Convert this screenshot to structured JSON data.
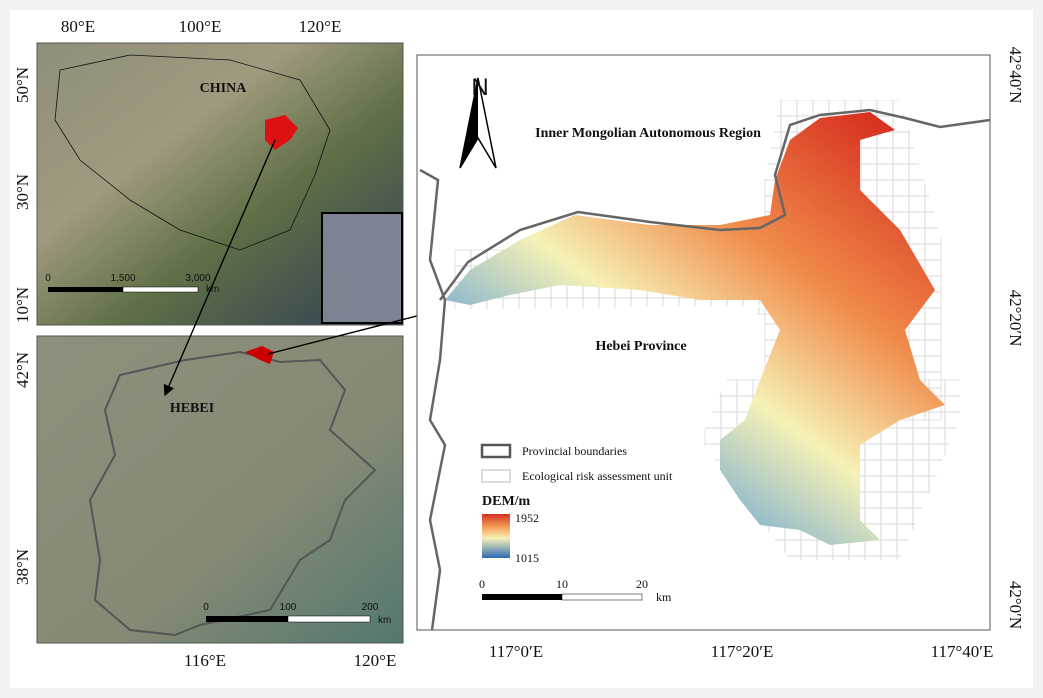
{
  "overview_map": {
    "lon_labels": [
      "80°E",
      "100°E",
      "120°E"
    ],
    "lat_labels": [
      "50°N",
      "30°N",
      "10°N"
    ],
    "label": "CHINA",
    "scale": [
      "0",
      "1,500",
      "3,000"
    ],
    "scale_unit": "km"
  },
  "hebei_map": {
    "lat_labels": [
      "42°N",
      "38°N"
    ],
    "lon_labels": [
      "116°E",
      "120°E"
    ],
    "label": "HEBEI",
    "scale": [
      "0",
      "100",
      "200"
    ],
    "scale_unit": "km"
  },
  "study_map": {
    "lat_labels": [
      "42°40′N",
      "42°20′N",
      "42°0′N"
    ],
    "lon_labels": [
      "117°0′E",
      "117°20′E",
      "117°40′E"
    ],
    "north": "N",
    "regions": [
      "Inner Mongolian Autonomous Region",
      "Hebei Province"
    ],
    "legend": {
      "items": [
        "Provincial boundaries",
        "Ecological risk assessment unit"
      ],
      "dem_title": "DEM/m",
      "dem_max": "1952",
      "dem_min": "1015"
    },
    "scale": [
      "0",
      "10",
      "20"
    ],
    "scale_unit": "km"
  }
}
